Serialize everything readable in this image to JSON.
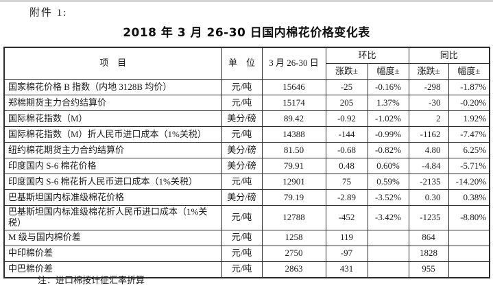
{
  "page": {
    "attachment_label": "附件 1:",
    "title": "2018 年 3 月 26-30 日国内棉花价格变化表",
    "note": "注：进口棉按计征汇率折算"
  },
  "table": {
    "headers": {
      "item": "项　目",
      "unit": "单　位",
      "period": "3 月 26-30 日",
      "mom": "环比",
      "yoy": "同比",
      "change": "涨跌±",
      "range": "幅度±"
    },
    "rows": [
      {
        "item": "国家棉花价格 B 指数（内地 3128B 均价）",
        "unit": "元/吨",
        "price": "15646",
        "mom_change": "-25",
        "mom_range": "-0.16%",
        "yoy_change": "-298",
        "yoy_range": "-1.87%"
      },
      {
        "item": "郑棉期货主力合约结算价",
        "unit": "元/吨",
        "price": "15174",
        "mom_change": "205",
        "mom_range": "1.37%",
        "yoy_change": "-30",
        "yoy_range": "-0.20%"
      },
      {
        "item": "国际棉花指数（M）",
        "unit": "美分/磅",
        "price": "89.42",
        "mom_change": "-0.92",
        "mom_range": "-1.02%",
        "yoy_change": "2",
        "yoy_range": "1.92%"
      },
      {
        "item": "国际棉花指数（M）折人民币进口成本（1%关税）",
        "unit": "元/吨",
        "price": "14388",
        "mom_change": "-144",
        "mom_range": "-0.99%",
        "yoy_change": "-1162",
        "yoy_range": "-7.47%"
      },
      {
        "item": "纽约棉花期货主力合约结算价",
        "unit": "美分/磅",
        "price": "81.50",
        "mom_change": "-0.68",
        "mom_range": "-0.82%",
        "yoy_change": "4.80",
        "yoy_range": "6.25%"
      },
      {
        "item": "印度国内 S-6 棉花价格",
        "unit": "美分/磅",
        "price": "79.91",
        "mom_change": "0.48",
        "mom_range": "0.60%",
        "yoy_change": "-4.84",
        "yoy_range": "-5.71%"
      },
      {
        "item": "印度国内 S-6 棉花折人民币进口成本（1%关税）",
        "unit": "元/吨",
        "price": "12901",
        "mom_change": "75",
        "mom_range": "0.59%",
        "yoy_change": "-2135",
        "yoy_range": "-14.20%"
      },
      {
        "item": "巴基斯坦国内标准级棉花价格",
        "unit": "美分/磅",
        "price": "79.19",
        "mom_change": "-2.89",
        "mom_range": "-3.52%",
        "yoy_change": "0.30",
        "yoy_range": "0.38%"
      },
      {
        "item": "巴基斯坦国内标准级棉花折人民币进口成本（1%关税）",
        "unit": "元/吨",
        "price": "12788",
        "mom_change": "-452",
        "mom_range": "-3.42%",
        "yoy_change": "-1235",
        "yoy_range": "-8.80%"
      },
      {
        "item": "M 级与国内棉价差",
        "unit": "元/吨",
        "price": "1258",
        "mom_change": "119",
        "mom_range": "",
        "yoy_change": "864",
        "yoy_range": ""
      },
      {
        "item": "中印棉价差",
        "unit": "元/吨",
        "price": "2750",
        "mom_change": "-97",
        "mom_range": "",
        "yoy_change": "1828",
        "yoy_range": ""
      },
      {
        "item": "中巴棉价差",
        "unit": "元/吨",
        "price": "2863",
        "mom_change": "431",
        "mom_range": "",
        "yoy_change": "955",
        "yoy_range": ""
      }
    ]
  }
}
